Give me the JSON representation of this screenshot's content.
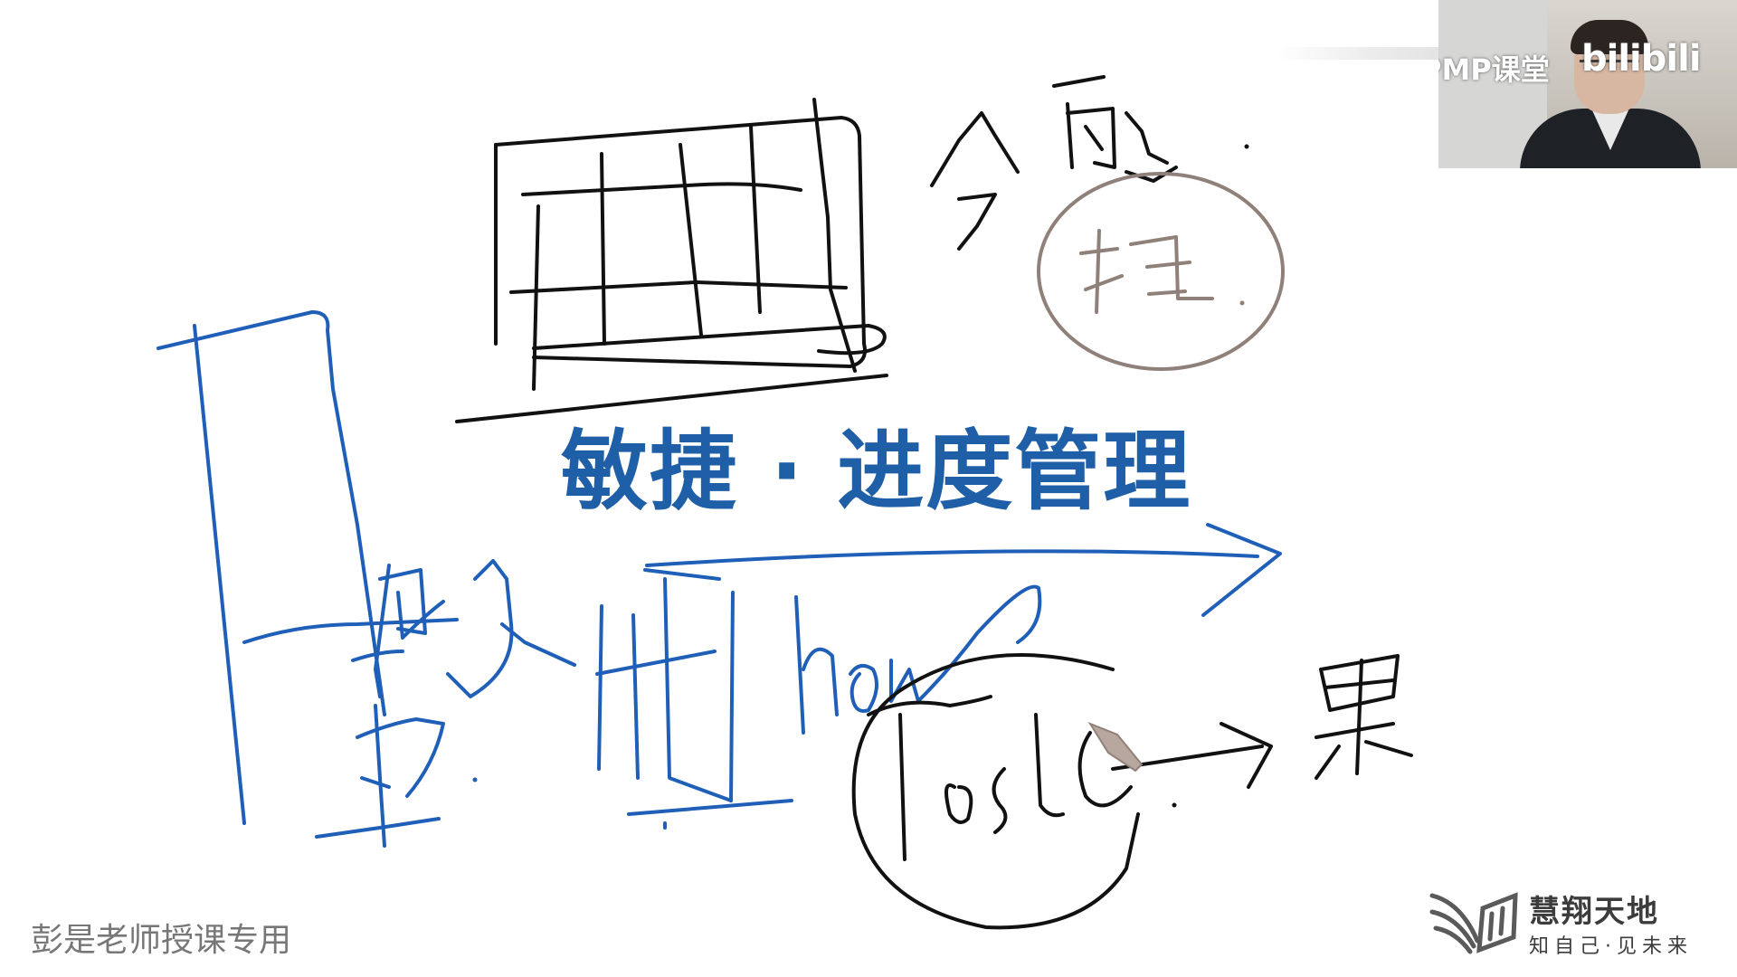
{
  "slide": {
    "title": "敏捷 · 进度管理",
    "watermark": "彭是老师授课专用"
  },
  "logo": {
    "name": "慧翔天地",
    "slogan": "知自己·见未来"
  },
  "webcam": {
    "caption": "PMP课堂",
    "platform_logo": "bilibili"
  },
  "handwriting": {
    "ink_colors": {
      "black": "#111111",
      "blue": "#1f5fb8",
      "gray": "#8f8079",
      "title": "#1f5fa8"
    },
    "notes": [
      "how",
      "Tools"
    ]
  }
}
